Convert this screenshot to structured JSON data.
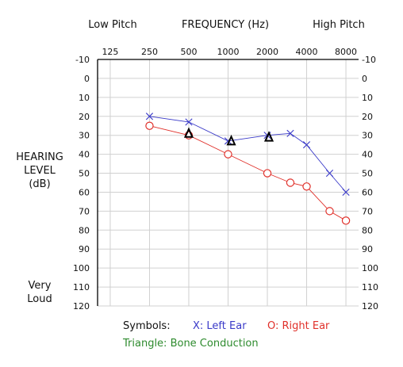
{
  "header": {
    "low_pitch": "Low Pitch",
    "frequency": "FREQUENCY (Hz)",
    "high_pitch": "High Pitch"
  },
  "side_labels": {
    "hearing": "HEARING",
    "level": "LEVEL",
    "db": "(dB)",
    "very": "Very",
    "loud": "Loud"
  },
  "legend": {
    "symbols": "Symbols:",
    "left": "X: Left Ear",
    "right": "O: Right Ear",
    "bone": "Triangle: Bone Conduction"
  },
  "colors": {
    "left": "#3a3ac8",
    "right": "#e0302a",
    "bone_text": "#2e8b2e",
    "grid": "#d0d0d0",
    "axis": "#000000"
  },
  "chart_data": {
    "type": "line",
    "x_scale": "log",
    "x_ticks": [
      125,
      250,
      500,
      1000,
      2000,
      4000,
      8000
    ],
    "x_tick_labels": [
      "125",
      "250",
      "500",
      "1000",
      "2000",
      "4000",
      "8000"
    ],
    "xlim": [
      100,
      10000
    ],
    "y_ticks": [
      -10,
      0,
      10,
      20,
      30,
      40,
      50,
      60,
      70,
      80,
      90,
      100,
      110,
      120
    ],
    "ylim": [
      -10,
      120
    ],
    "y_inverted": true,
    "grid": true,
    "series": [
      {
        "marker": "x",
        "color": "#3a3ac8",
        "x": [
          250,
          500,
          1000,
          2000,
          3000,
          4000,
          6000,
          8000
        ],
        "y": [
          20,
          23,
          33,
          30,
          29,
          35,
          50,
          60
        ]
      },
      {
        "marker": "o",
        "color": "#e0302a",
        "x": [
          250,
          500,
          1000,
          2000,
          3000,
          4000,
          6000,
          8000
        ],
        "y": [
          25,
          30,
          40,
          50,
          55,
          57,
          70,
          75
        ]
      },
      {
        "marker": "triangle",
        "color": "#000000",
        "x": [
          500,
          1000,
          2000
        ],
        "y": [
          29,
          33,
          31
        ]
      }
    ]
  }
}
